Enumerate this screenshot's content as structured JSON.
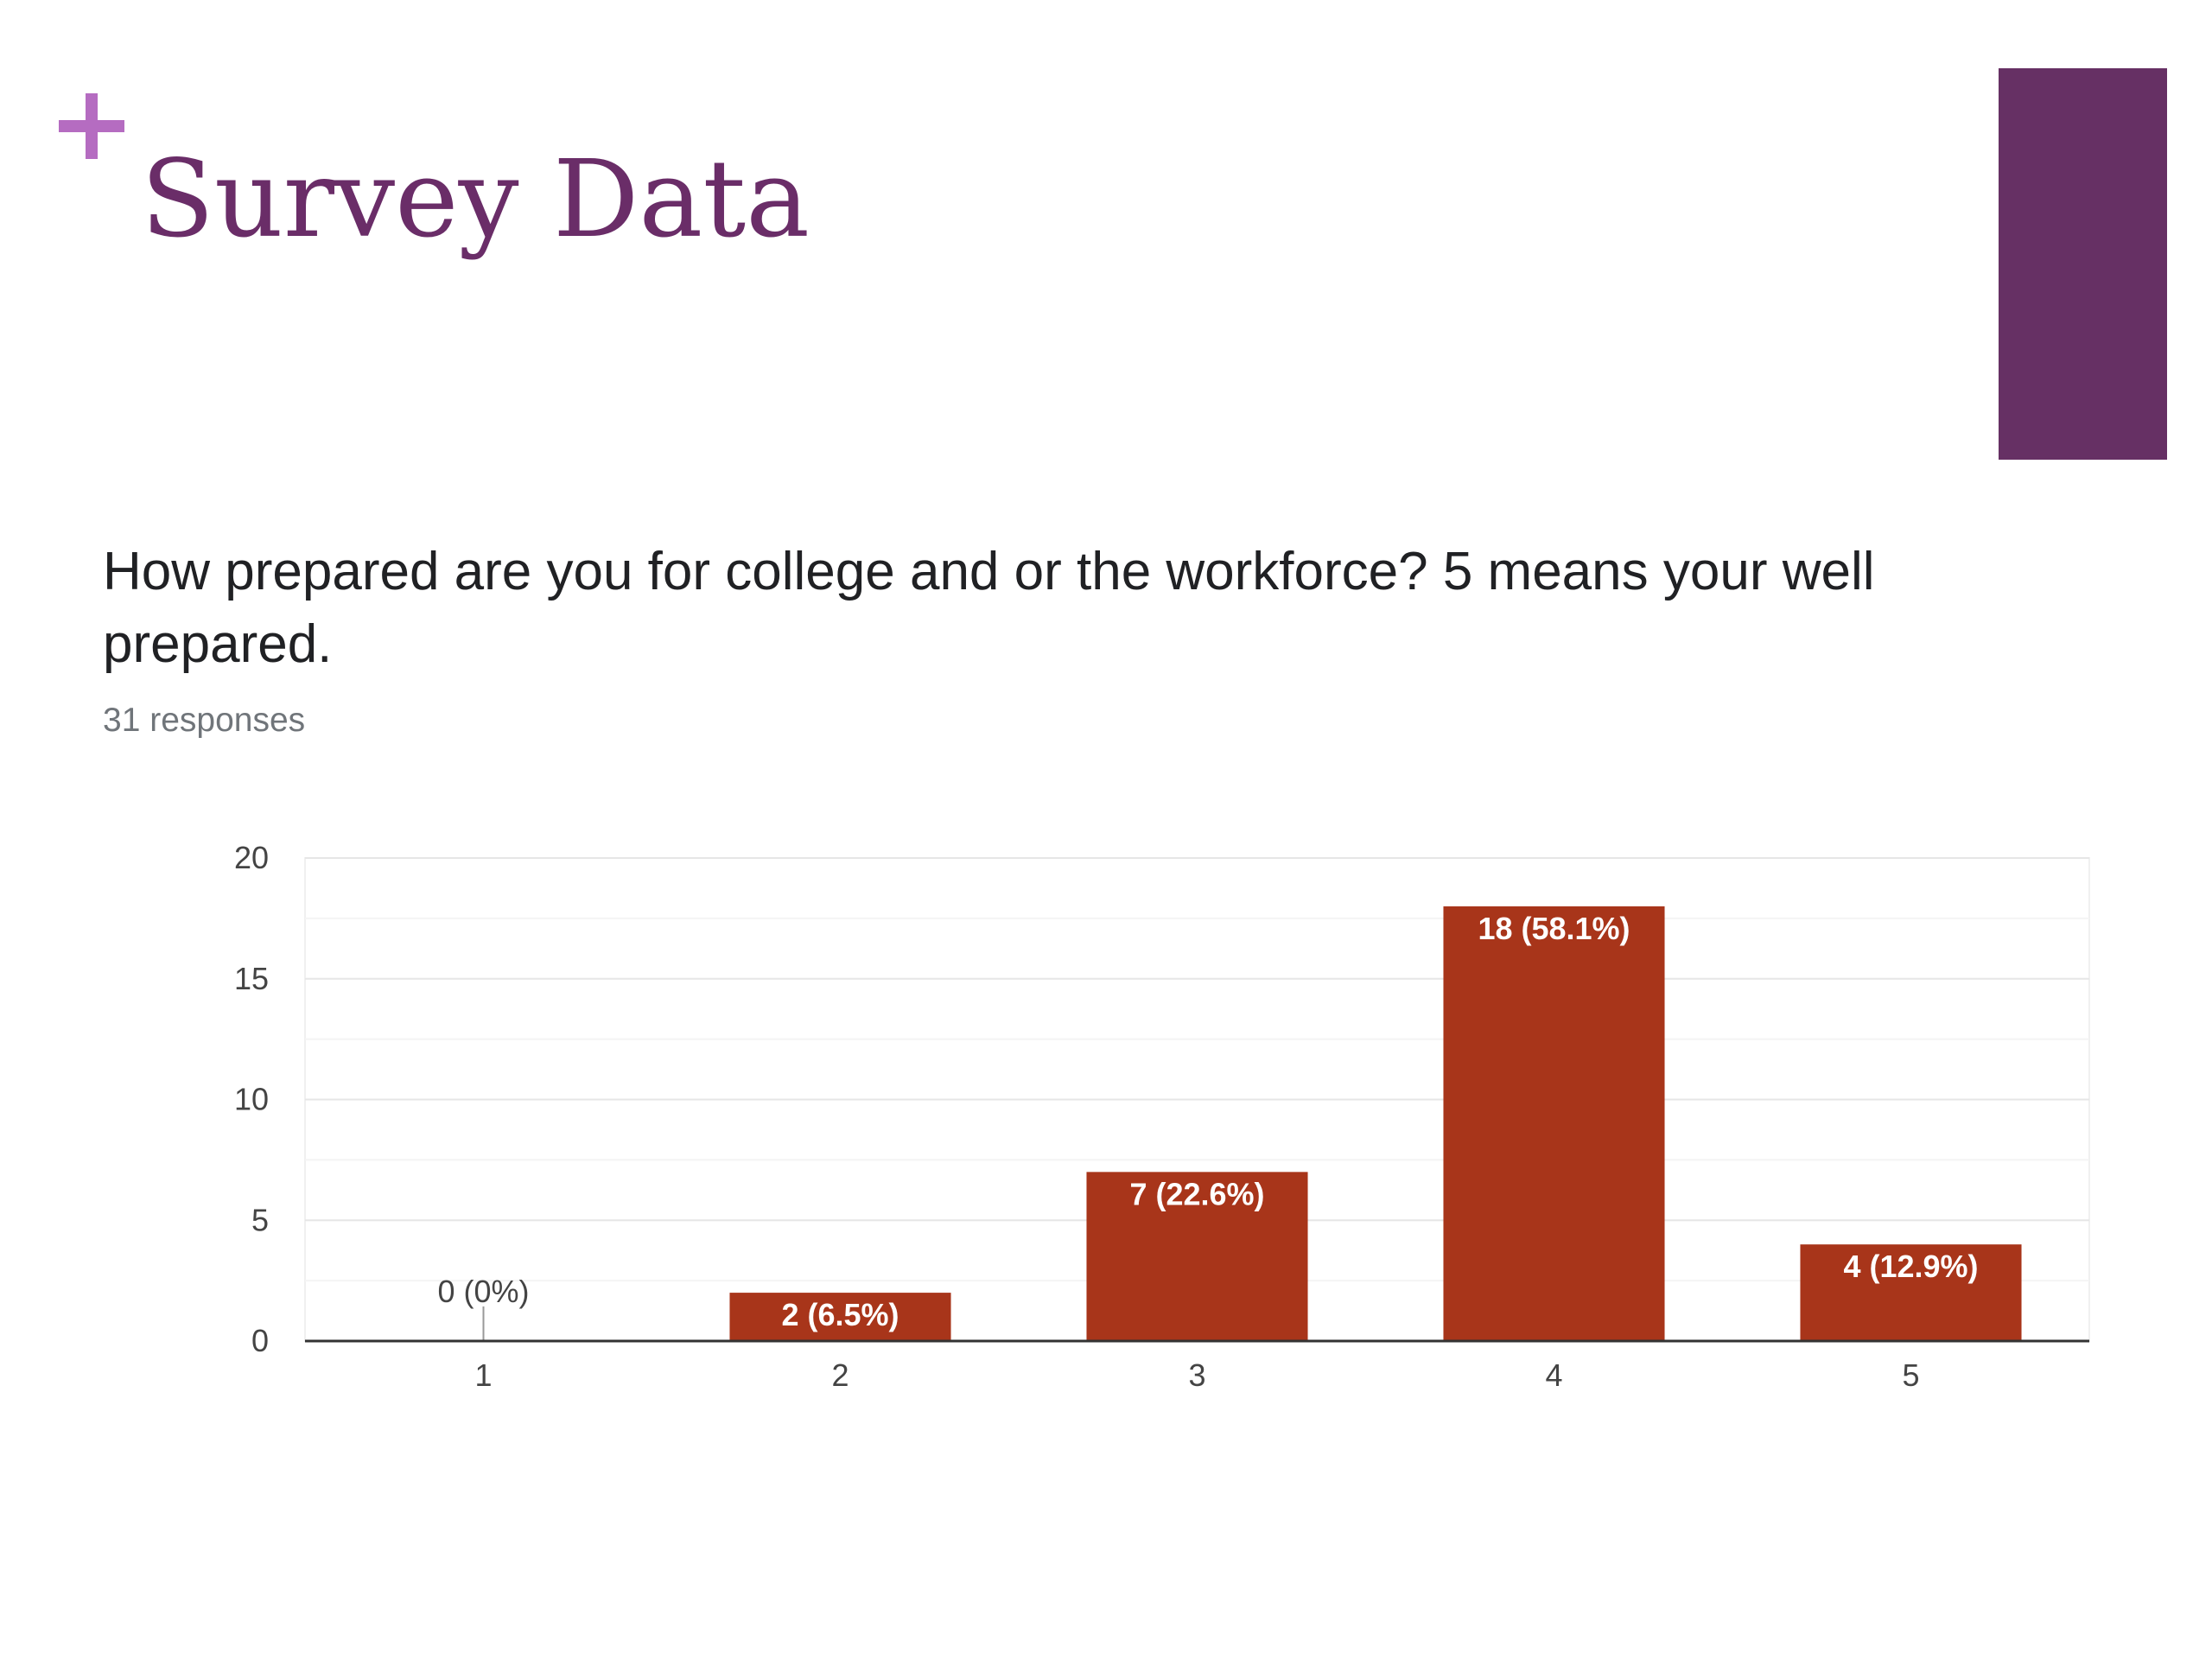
{
  "slide": {
    "title": "Survey Data",
    "question": "How prepared are you for college and or the workforce? 5 means your well prepared.",
    "responses": "31 responses"
  },
  "colors": {
    "title": "#6a2d68",
    "accent_block": "#663064",
    "plus_mark": "#b56cc1",
    "bar": "#a8351a"
  },
  "icons": {
    "plus_mark": "plus-icon"
  },
  "chart_data": {
    "type": "bar",
    "categories": [
      "1",
      "2",
      "3",
      "4",
      "5"
    ],
    "values": [
      0,
      2,
      7,
      18,
      4
    ],
    "data_labels": [
      "0 (0%)",
      "2 (6.5%)",
      "7 (22.6%)",
      "18 (58.1%)",
      "4 (12.9%)"
    ],
    "yticks": [
      0,
      5,
      10,
      15,
      20
    ],
    "ylim": [
      0,
      20
    ],
    "title": "",
    "xlabel": "",
    "ylabel": "",
    "grid": true,
    "legend": "none"
  }
}
